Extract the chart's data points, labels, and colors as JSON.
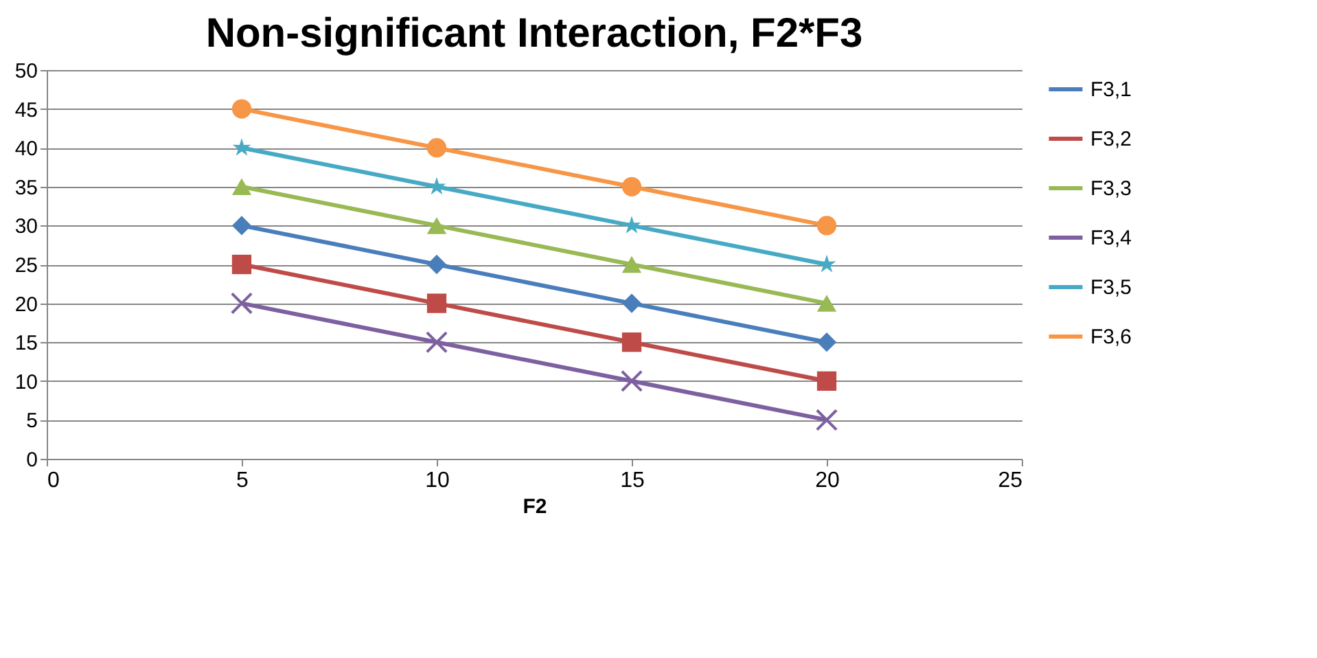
{
  "chart_data": {
    "type": "line",
    "title": "Non-significant  Interaction, F2*F3",
    "xlabel": "F2",
    "x": [
      5,
      10,
      15,
      20
    ],
    "xlim": [
      0,
      25
    ],
    "xticks": [
      0,
      5,
      10,
      15,
      20,
      25
    ],
    "ylim": [
      0,
      50
    ],
    "yticks": [
      0,
      5,
      10,
      15,
      20,
      25,
      30,
      35,
      40,
      45,
      50
    ],
    "grid": "y",
    "legend": "right",
    "line_style": "solid",
    "series": [
      {
        "name": "F3,1",
        "color": "#4a7ebb",
        "marker": "diamond",
        "values": [
          30,
          25,
          20,
          15
        ]
      },
      {
        "name": "F3,2",
        "color": "#be4b48",
        "marker": "square",
        "values": [
          25,
          20,
          15,
          10
        ]
      },
      {
        "name": "F3,3",
        "color": "#98b954",
        "marker": "triangle",
        "values": [
          35,
          30,
          25,
          20
        ]
      },
      {
        "name": "F3,4",
        "color": "#7d60a0",
        "marker": "cross",
        "values": [
          20,
          15,
          10,
          5
        ]
      },
      {
        "name": "F3,5",
        "color": "#46aac5",
        "marker": "star",
        "values": [
          40,
          35,
          30,
          25
        ]
      },
      {
        "name": "F3,6",
        "color": "#f79646",
        "marker": "circle",
        "values": [
          45,
          40,
          35,
          30
        ]
      }
    ]
  }
}
